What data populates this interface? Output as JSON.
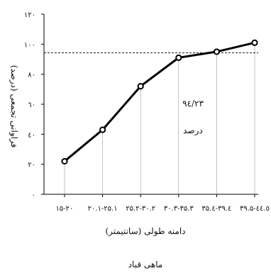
{
  "chart_data": {
    "type": "line",
    "categories": [
      "۱۵-۲۰",
      "۲۰.۱-۲۵.۱",
      "۲۵.۲-۳۰.۲",
      "۳۰.۳-۳۵.۳",
      "۳۵.٤-۳۹.٤",
      "۳۹.۵-٤٤.٥"
    ],
    "series": [
      {
        "values": [
          22,
          43,
          72,
          91,
          95,
          101
        ]
      }
    ],
    "ylim": [
      0,
      120
    ],
    "yticks": [
      0,
      20,
      40,
      60,
      80,
      100,
      120
    ],
    "ytick_labels": [
      "٠",
      "٢٠",
      "٤٠",
      "٦٠",
      "٨٠",
      "١٠٠",
      "١٢٠"
    ],
    "threshold": 94.23,
    "annotation": "۹٤/۲۳",
    "annotation2": "درصد",
    "ylabel": "فراوانی تجمعی (درصد)",
    "xlabel": "دامنه طولی (سانتیمتر)",
    "title": "ماهی قباد",
    "grid": false,
    "legend": "none",
    "colors": {
      "line": "#000000",
      "marker_fill": "#ffffff",
      "guide": "#999999"
    }
  }
}
